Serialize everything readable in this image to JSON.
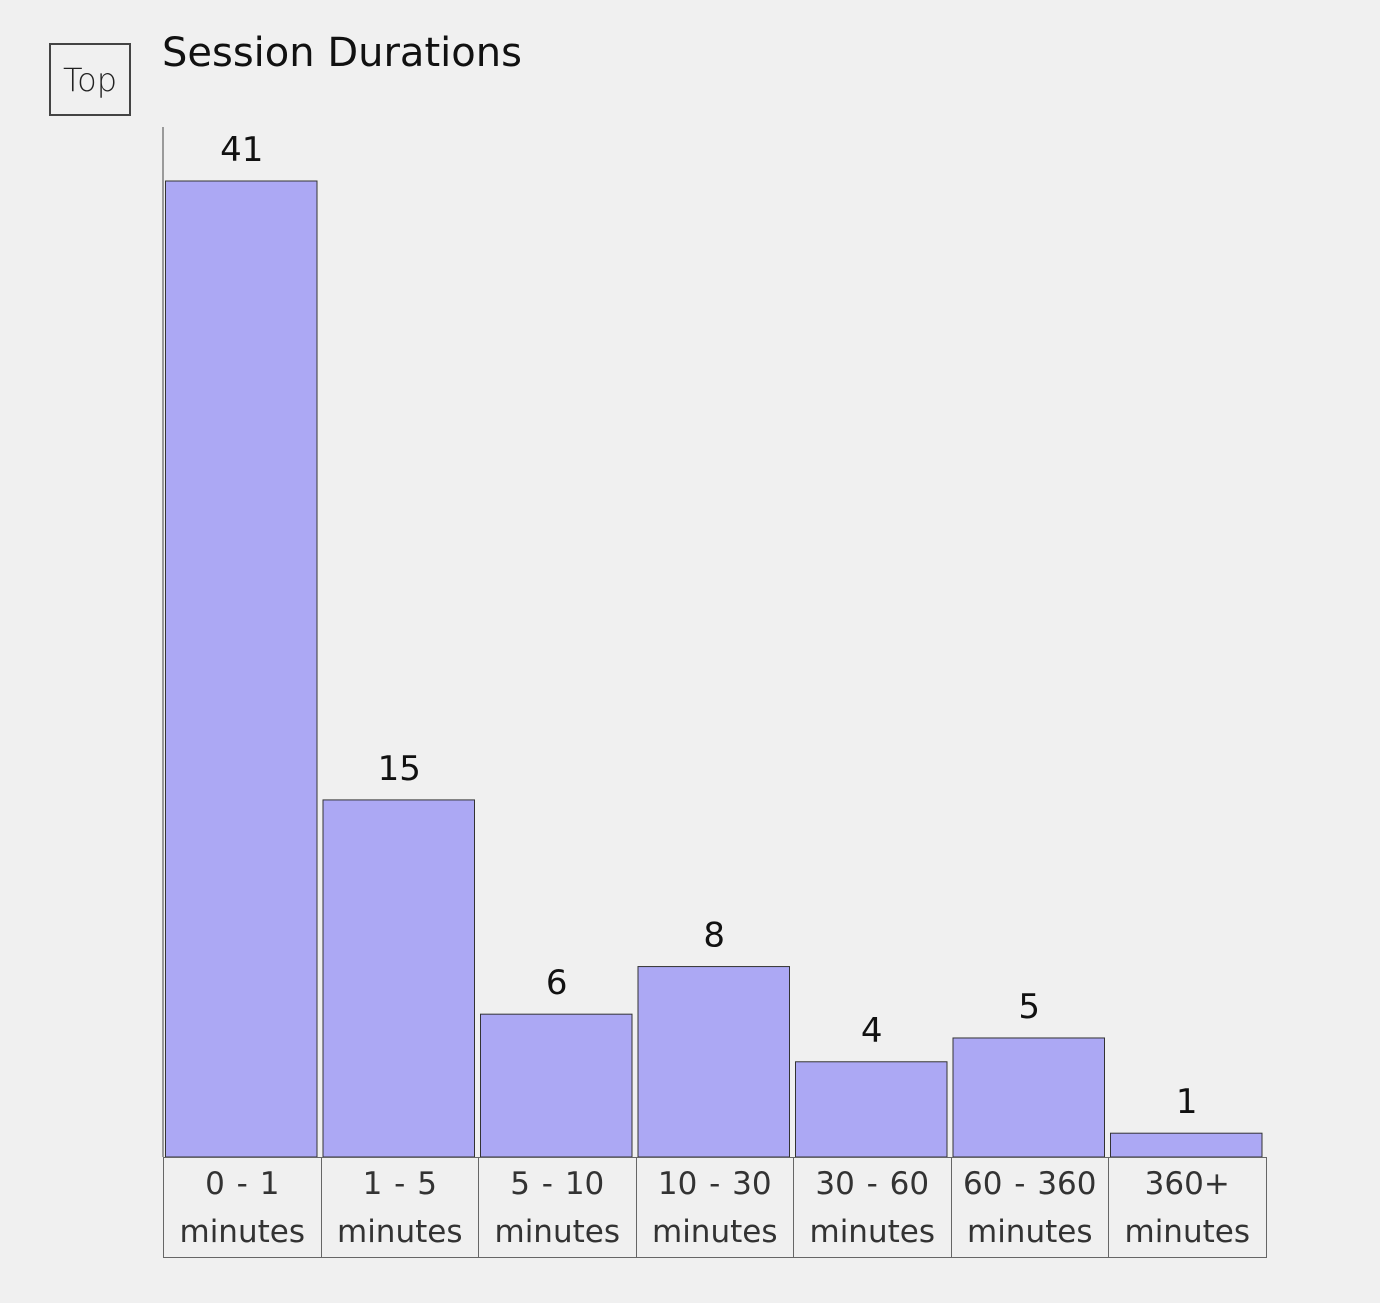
{
  "button": {
    "label": "Top"
  },
  "chart_data": {
    "type": "bar",
    "title": "Session Durations",
    "categories": [
      "0 - 1 minutes",
      "1 - 5 minutes",
      "5 - 10 minutes",
      "10 - 30 minutes",
      "30 - 60 minutes",
      "60 - 360 minutes",
      "360+ minutes"
    ],
    "values": [
      41,
      15,
      6,
      8,
      4,
      5,
      1
    ],
    "color": "#aca8f4"
  }
}
